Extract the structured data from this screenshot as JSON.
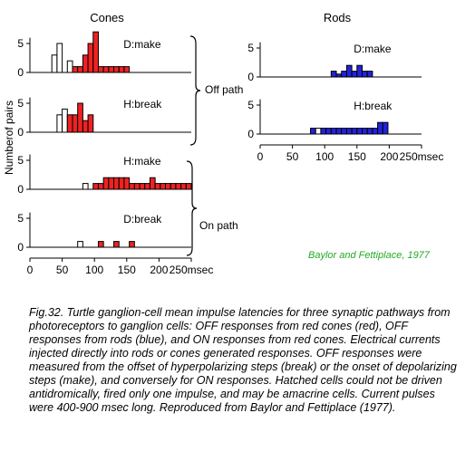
{
  "chart_data": {
    "type": "bar",
    "columns": [
      {
        "title": "Cones",
        "x_ticks": [
          0,
          50,
          100,
          150,
          200,
          250
        ],
        "x_unit": "msec"
      },
      {
        "title": "Rods",
        "x_ticks": [
          0,
          50,
          100,
          150,
          200,
          250
        ],
        "x_unit": "msec"
      }
    ],
    "ylabel": "Numberof pairs",
    "bin_width_msec": 8,
    "colors": {
      "red": "#ee2222",
      "blue": "#2222dd",
      "hatched": "#ffffff"
    },
    "group_labels": {
      "off": "Off path",
      "on": "On path"
    },
    "panels": [
      {
        "key": "cones_dmake",
        "column": 0,
        "label": "D:make",
        "color": "red",
        "yticks": [
          0,
          5
        ],
        "bins": [
          [
            34,
            3,
            "hatched"
          ],
          [
            42,
            5,
            "hatched"
          ],
          [
            58,
            2,
            "hatched"
          ],
          [
            66,
            1,
            "filled"
          ],
          [
            74,
            1,
            "filled"
          ],
          [
            82,
            3,
            "filled"
          ],
          [
            90,
            5,
            "filled"
          ],
          [
            98,
            7,
            "filled"
          ],
          [
            106,
            1,
            "filled"
          ],
          [
            114,
            1,
            "filled"
          ],
          [
            122,
            1,
            "filled"
          ],
          [
            130,
            1,
            "filled"
          ],
          [
            138,
            1,
            "filled"
          ],
          [
            146,
            1,
            "filled"
          ]
        ]
      },
      {
        "key": "cones_hbreak",
        "column": 0,
        "label": "H:break",
        "color": "red",
        "yticks": [
          0,
          5
        ],
        "bins": [
          [
            42,
            3,
            "hatched"
          ],
          [
            50,
            4,
            "hatched"
          ],
          [
            58,
            3,
            "filled"
          ],
          [
            66,
            3,
            "filled"
          ],
          [
            74,
            5,
            "filled"
          ],
          [
            82,
            2,
            "filled"
          ],
          [
            90,
            3,
            "filled"
          ]
        ]
      },
      {
        "key": "rods_dmake",
        "column": 1,
        "label": "D:make",
        "color": "blue",
        "yticks": [
          0,
          5
        ],
        "bins": [
          [
            110,
            1,
            "filled"
          ],
          [
            118,
            0.5,
            "filled"
          ],
          [
            126,
            1,
            "filled"
          ],
          [
            134,
            2,
            "filled"
          ],
          [
            142,
            1,
            "filled"
          ],
          [
            150,
            2,
            "filled"
          ],
          [
            158,
            1,
            "filled"
          ],
          [
            166,
            1,
            "filled"
          ]
        ]
      },
      {
        "key": "rods_hbreak",
        "column": 1,
        "label": "H:break",
        "color": "blue",
        "yticks": [
          0,
          5
        ],
        "bins": [
          [
            78,
            1,
            "filled"
          ],
          [
            86,
            1,
            "hatched"
          ],
          [
            94,
            1,
            "filled"
          ],
          [
            102,
            1,
            "filled"
          ],
          [
            110,
            1,
            "filled"
          ],
          [
            118,
            1,
            "filled"
          ],
          [
            126,
            1,
            "filled"
          ],
          [
            134,
            1,
            "filled"
          ],
          [
            142,
            1,
            "filled"
          ],
          [
            150,
            1,
            "filled"
          ],
          [
            158,
            1,
            "filled"
          ],
          [
            166,
            1,
            "filled"
          ],
          [
            174,
            1,
            "filled"
          ],
          [
            182,
            2,
            "filled"
          ],
          [
            190,
            2,
            "filled"
          ]
        ]
      },
      {
        "key": "cones_hmake",
        "column": 0,
        "label": "H:make",
        "color": "red",
        "yticks": [
          0,
          5
        ],
        "bins": [
          [
            82,
            1,
            "hatched"
          ],
          [
            98,
            1,
            "filled"
          ],
          [
            106,
            1,
            "filled"
          ],
          [
            114,
            2,
            "filled"
          ],
          [
            122,
            2,
            "filled"
          ],
          [
            130,
            2,
            "filled"
          ],
          [
            138,
            2,
            "filled"
          ],
          [
            146,
            2,
            "filled"
          ],
          [
            154,
            1,
            "filled"
          ],
          [
            162,
            1,
            "filled"
          ],
          [
            170,
            1,
            "filled"
          ],
          [
            178,
            1,
            "filled"
          ],
          [
            186,
            2,
            "filled"
          ],
          [
            194,
            1,
            "filled"
          ],
          [
            202,
            1,
            "filled"
          ],
          [
            210,
            1,
            "filled"
          ],
          [
            218,
            1,
            "filled"
          ],
          [
            226,
            1,
            "filled"
          ],
          [
            234,
            1,
            "filled"
          ],
          [
            242,
            1,
            "filled"
          ]
        ]
      },
      {
        "key": "cones_dbreak",
        "column": 0,
        "label": "D:break",
        "color": "red",
        "yticks": [
          0,
          5
        ],
        "bins": [
          [
            74,
            1,
            "hatched"
          ],
          [
            106,
            1,
            "filled"
          ],
          [
            130,
            1,
            "filled"
          ],
          [
            154,
            1,
            "filled"
          ]
        ]
      }
    ]
  },
  "credit": "Baylor and Fettiplace, 1977",
  "caption": "Fig.32. Turtle ganglion-cell mean impulse latencies for three synaptic pathways from photoreceptors to ganglion cells: OFF responses from red cones (red), OFF responses from rods (blue), and ON responses from red cones. Electrical currents injected directly into rods or cones generated responses. OFF responses were measured from the offset of hyperpolarizing steps (break) or the onset of depolarizing steps (make), and conversely for ON responses. Hatched cells could not be driven antidromically, fired only one impulse, and may be amacrine cells. Current pulses were 400-900 msec long. Reproduced from Baylor and Fettiplace (1977)."
}
